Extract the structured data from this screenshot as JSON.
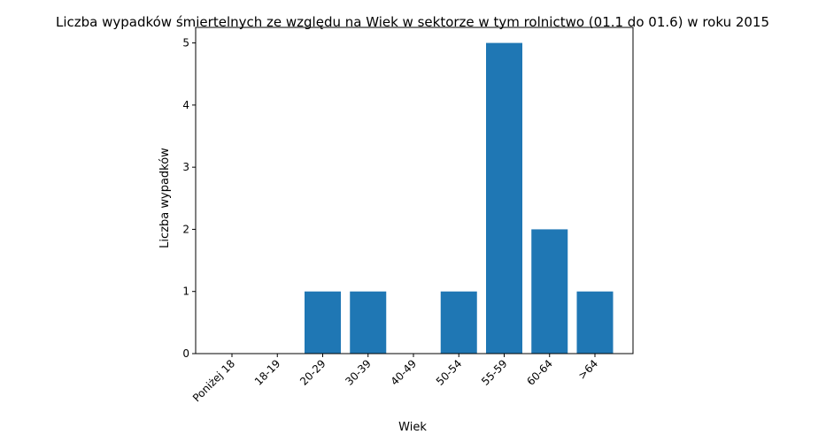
{
  "chart_data": {
    "type": "bar",
    "title": "Liczba wypadków śmiertelnych ze względu na Wiek w sektorze    w tym rolnictwo (01.1 do 01.6) w roku 2015",
    "xlabel": "Wiek",
    "ylabel": "Liczba wypadków",
    "categories": [
      "Poniżej 18",
      "18-19",
      "20-29",
      "30-39",
      "40-49",
      "50-54",
      "55-59",
      "60-64",
      ">64"
    ],
    "values": [
      0,
      0,
      1,
      1,
      0,
      1,
      5,
      2,
      1
    ],
    "ylim": [
      0,
      5.25
    ],
    "yticks": [
      0,
      1,
      2,
      3,
      4,
      5
    ],
    "bar_color": "#1f77b4",
    "grid": false,
    "legend": "none"
  }
}
